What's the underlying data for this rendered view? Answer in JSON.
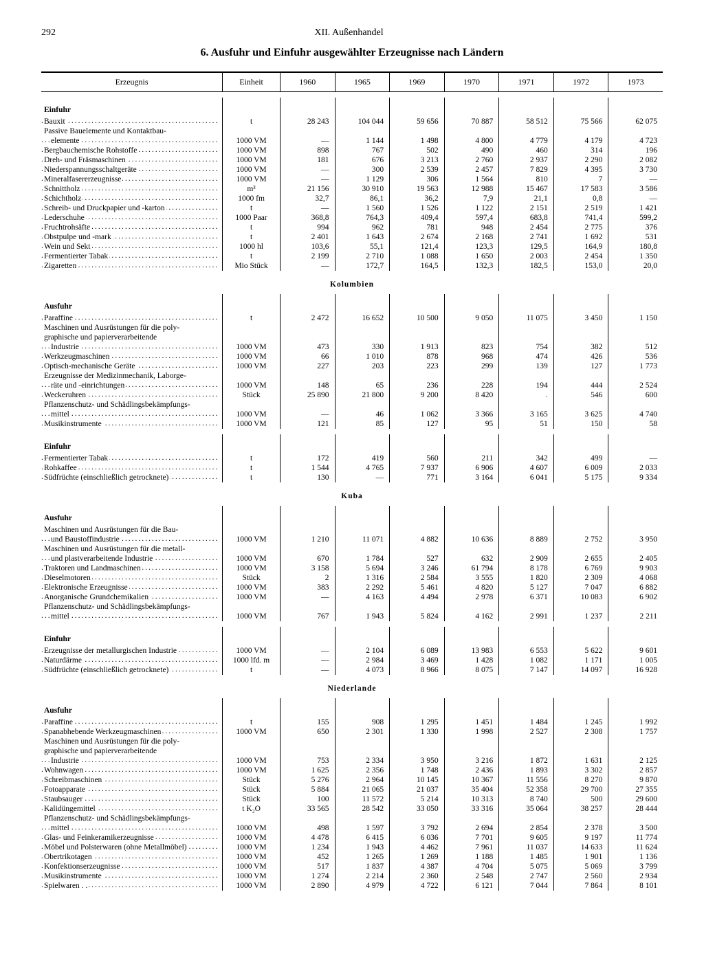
{
  "page_number": "292",
  "chapter": "XII. Außenhandel",
  "title": "6. Ausfuhr und Einfuhr ausgewählter Erzeugnisse nach Ländern",
  "columns": {
    "product": "Erzeugnis",
    "unit": "Einheit",
    "years": [
      "1960",
      "1965",
      "1969",
      "1970",
      "1971",
      "1972",
      "1973"
    ]
  },
  "colors": {
    "text": "#000000",
    "bg": "#ffffff",
    "rule": "#000000"
  },
  "fontsize": {
    "body": 11.5,
    "header": 14,
    "title": 16
  },
  "sections": [
    {
      "type": "section",
      "label": "Einfuhr"
    },
    {
      "type": "row",
      "label": "Bauxit",
      "unit": "t",
      "v": [
        "28 243",
        "104 044",
        "59 656",
        "70 887",
        "58 512",
        "75 566",
        "62 075"
      ]
    },
    {
      "type": "row",
      "label": "Passive Bauelemente und Kontaktbau-",
      "nodots": true,
      "unit": "",
      "v": [
        "",
        "",
        "",
        "",
        "",
        "",
        ""
      ]
    },
    {
      "type": "cont",
      "label": "elemente",
      "unit": "1000 VM",
      "v": [
        "—",
        "1 144",
        "1 498",
        "4 800",
        "4 779",
        "4 179",
        "4 723"
      ]
    },
    {
      "type": "row",
      "label": "Bergbauchemische Rohstoffe",
      "unit": "1000 VM",
      "v": [
        "898",
        "767",
        "502",
        "490",
        "460",
        "314",
        "196"
      ]
    },
    {
      "type": "row",
      "label": "Dreh- und Fräsmaschinen",
      "unit": "1000 VM",
      "v": [
        "181",
        "676",
        "3 213",
        "2 760",
        "2 937",
        "2 290",
        "2 082"
      ]
    },
    {
      "type": "row",
      "label": "Niederspannungsschaltgeräte",
      "unit": "1000 VM",
      "v": [
        "—",
        "300",
        "2 539",
        "2 457",
        "7 829",
        "4 395",
        "3 730"
      ]
    },
    {
      "type": "row",
      "label": "Mineralfasererzeugnisse",
      "unit": "1000 VM",
      "v": [
        "—",
        "1 129",
        "306",
        "1 564",
        "810",
        "7",
        "—"
      ]
    },
    {
      "type": "row",
      "label": "Schnittholz",
      "unit": "m³",
      "v": [
        "21 156",
        "30 910",
        "19 563",
        "12 988",
        "15 467",
        "17 583",
        "3 586"
      ]
    },
    {
      "type": "row",
      "label": "Schichtholz",
      "unit": "1000 fm",
      "v": [
        "32,7",
        "86,1",
        "36,2",
        "7,9",
        "21,1",
        "0,8",
        "—"
      ]
    },
    {
      "type": "row",
      "label": "Schreib- und Druckpapier und -karton",
      "unit": "t",
      "v": [
        "—",
        "1 560",
        "1 526",
        "1 122",
        "2 151",
        "2 519",
        "1 421"
      ]
    },
    {
      "type": "row",
      "label": "Lederschuhe",
      "unit": "1000 Paar",
      "v": [
        "368,8",
        "764,3",
        "409,4",
        "597,4",
        "683,8",
        "741,4",
        "599,2"
      ]
    },
    {
      "type": "row",
      "label": "Fruchtrohsäfte",
      "unit": "t",
      "v": [
        "994",
        "962",
        "781",
        "948",
        "2 454",
        "2 775",
        "376"
      ]
    },
    {
      "type": "row",
      "label": "Obstpulpe und -mark",
      "unit": "t",
      "v": [
        "2 401",
        "1 643",
        "2 674",
        "2 168",
        "2 741",
        "1 692",
        "531"
      ]
    },
    {
      "type": "row",
      "label": "Wein und Sekt",
      "unit": "1000 hl",
      "v": [
        "103,6",
        "55,1",
        "121,4",
        "123,3",
        "129,5",
        "164,9",
        "180,8"
      ]
    },
    {
      "type": "row",
      "label": "Fermentierter Tabak",
      "unit": "t",
      "v": [
        "2 199",
        "2 710",
        "1 088",
        "1 650",
        "2 003",
        "2 454",
        "1 350"
      ]
    },
    {
      "type": "row",
      "label": "Zigaretten",
      "unit": "Mio Stück",
      "v": [
        "—",
        "172,7",
        "164,5",
        "132,3",
        "182,5",
        "153,0",
        "20,0"
      ]
    },
    {
      "type": "country",
      "label": "Kolumbien"
    },
    {
      "type": "section",
      "label": "Ausfuhr"
    },
    {
      "type": "row",
      "label": "Paraffine",
      "unit": "t",
      "v": [
        "2 472",
        "16 652",
        "10 500",
        "9 050",
        "11 075",
        "3 450",
        "1 150"
      ]
    },
    {
      "type": "row",
      "label": "Maschinen und Ausrüstungen für die poly-",
      "nodots": true,
      "unit": "",
      "v": [
        "",
        "",
        "",
        "",
        "",
        "",
        ""
      ]
    },
    {
      "type": "row",
      "label": "  graphische und papierverarbeitende",
      "nodots": true,
      "unit": "",
      "v": [
        "",
        "",
        "",
        "",
        "",
        "",
        ""
      ]
    },
    {
      "type": "cont",
      "label": "Industrie",
      "unit": "1000 VM",
      "v": [
        "473",
        "330",
        "1 913",
        "823",
        "754",
        "382",
        "512"
      ]
    },
    {
      "type": "row",
      "label": "Werkzeugmaschinen",
      "unit": "1000 VM",
      "v": [
        "66",
        "1 010",
        "878",
        "968",
        "474",
        "426",
        "536"
      ]
    },
    {
      "type": "row",
      "label": "Optisch-mechanische Geräte",
      "unit": "1000 VM",
      "v": [
        "227",
        "203",
        "223",
        "299",
        "139",
        "127",
        "1 773"
      ]
    },
    {
      "type": "row",
      "label": "Erzeugnisse der Medizinmechanik, Laborge-",
      "nodots": true,
      "unit": "",
      "v": [
        "",
        "",
        "",
        "",
        "",
        "",
        ""
      ]
    },
    {
      "type": "cont",
      "label": "räte und -einrichtungen",
      "unit": "1000 VM",
      "v": [
        "148",
        "65",
        "236",
        "228",
        "194",
        "444",
        "2 524"
      ]
    },
    {
      "type": "row",
      "label": "Weckeruhren",
      "unit": "Stück",
      "v": [
        "25 890",
        "21 800",
        "9 200",
        "8 420",
        ".",
        "546",
        "600"
      ]
    },
    {
      "type": "row",
      "label": "Pflanzenschutz- und Schädlingsbekämpfungs-",
      "nodots": true,
      "unit": "",
      "v": [
        "",
        "",
        "",
        "",
        "",
        "",
        ""
      ]
    },
    {
      "type": "cont",
      "label": "mittel",
      "unit": "1000 VM",
      "v": [
        "—",
        "46",
        "1 062",
        "3 366",
        "3 165",
        "3 625",
        "4 740"
      ]
    },
    {
      "type": "row",
      "label": "Musikinstrumente",
      "unit": "1000 VM",
      "v": [
        "121",
        "85",
        "127",
        "95",
        "51",
        "150",
        "58"
      ]
    },
    {
      "type": "spacer"
    },
    {
      "type": "section",
      "label": "Einfuhr"
    },
    {
      "type": "row",
      "label": "Fermentierter Tabak",
      "unit": "t",
      "v": [
        "172",
        "419",
        "560",
        "211",
        "342",
        "499",
        "—"
      ]
    },
    {
      "type": "row",
      "label": "Rohkaffee",
      "unit": "t",
      "v": [
        "1 544",
        "4 765",
        "7 937",
        "6 906",
        "4 607",
        "6 009",
        "2 033"
      ]
    },
    {
      "type": "row",
      "label": "Südfrüchte (einschließlich getrocknete)",
      "unit": "t",
      "v": [
        "130",
        "—",
        "771",
        "3 164",
        "6 041",
        "5 175",
        "9 334"
      ]
    },
    {
      "type": "country",
      "label": "Kuba"
    },
    {
      "type": "section",
      "label": "Ausfuhr"
    },
    {
      "type": "row",
      "label": "Maschinen und Ausrüstungen für die Bau-",
      "nodots": true,
      "unit": "",
      "v": [
        "",
        "",
        "",
        "",
        "",
        "",
        ""
      ]
    },
    {
      "type": "cont",
      "label": "und Baustoffindustrie",
      "unit": "1000 VM",
      "v": [
        "1 210",
        "11 071",
        "4 882",
        "10 636",
        "8 889",
        "2 752",
        "3 950"
      ]
    },
    {
      "type": "row",
      "label": "Maschinen und Ausrüstungen für die metall-",
      "nodots": true,
      "unit": "",
      "v": [
        "",
        "",
        "",
        "",
        "",
        "",
        ""
      ]
    },
    {
      "type": "cont",
      "label": "und plastverarbeitende Industrie",
      "unit": "1000 VM",
      "v": [
        "670",
        "1 784",
        "527",
        "632",
        "2 909",
        "2 655",
        "2 405"
      ]
    },
    {
      "type": "row",
      "label": "Traktoren und Landmaschinen",
      "unit": "1000 VM",
      "v": [
        "3 158",
        "5 694",
        "3 246",
        "61 794",
        "8 178",
        "6 769",
        "9 903"
      ]
    },
    {
      "type": "row",
      "label": "Dieselmotoren",
      "unit": "Stück",
      "v": [
        "2",
        "1 316",
        "2 584",
        "3 555",
        "1 820",
        "2 309",
        "4 068"
      ]
    },
    {
      "type": "row",
      "label": "Elektronische Erzeugnisse",
      "unit": "1000 VM",
      "v": [
        "383",
        "2 292",
        "5 461",
        "4 820",
        "5 127",
        "7 047",
        "6 882"
      ]
    },
    {
      "type": "row",
      "label": "Anorganische Grundchemikalien",
      "unit": "1000 VM",
      "v": [
        "—",
        "4 163",
        "4 494",
        "2 978",
        "6 371",
        "10 083",
        "6 902"
      ]
    },
    {
      "type": "row",
      "label": "Pflanzenschutz- und Schädlingsbekämpfungs-",
      "nodots": true,
      "unit": "",
      "v": [
        "",
        "",
        "",
        "",
        "",
        "",
        ""
      ]
    },
    {
      "type": "cont",
      "label": "mittel",
      "unit": "1000 VM",
      "v": [
        "767",
        "1 943",
        "5 824",
        "4 162",
        "2 991",
        "1 237",
        "2 211"
      ]
    },
    {
      "type": "spacer"
    },
    {
      "type": "section",
      "label": "Einfuhr"
    },
    {
      "type": "row",
      "label": "Erzeugnisse der metallurgischen Industrie",
      "unit": "1000 VM",
      "v": [
        "—",
        "2 104",
        "6 089",
        "13 983",
        "6 553",
        "5 622",
        "9 601"
      ]
    },
    {
      "type": "row",
      "label": "Naturdärme",
      "unit": "1000 lfd. m",
      "v": [
        "—",
        "2 984",
        "3 469",
        "1 428",
        "1 082",
        "1 171",
        "1 005"
      ]
    },
    {
      "type": "row",
      "label": "Südfrüchte (einschließlich getrocknete)",
      "unit": "t",
      "v": [
        "—",
        "4 073",
        "8 966",
        "8 075",
        "7 147",
        "14 097",
        "16 928"
      ]
    },
    {
      "type": "country",
      "label": "Niederlande"
    },
    {
      "type": "section",
      "label": "Ausfuhr"
    },
    {
      "type": "row",
      "label": "Paraffine",
      "unit": "t",
      "v": [
        "155",
        "908",
        "1 295",
        "1 451",
        "1 484",
        "1 245",
        "1 992"
      ]
    },
    {
      "type": "row",
      "label": "Spanabhebende Werkzeugmaschinen",
      "unit": "1000 VM",
      "v": [
        "650",
        "2 301",
        "1 330",
        "1 998",
        "2 527",
        "2 308",
        "1 757"
      ]
    },
    {
      "type": "row",
      "label": "Maschinen und Ausrüstungen für die poly-",
      "nodots": true,
      "unit": "",
      "v": [
        "",
        "",
        "",
        "",
        "",
        "",
        ""
      ]
    },
    {
      "type": "row",
      "label": "  graphische und papierverarbeitende",
      "nodots": true,
      "unit": "",
      "v": [
        "",
        "",
        "",
        "",
        "",
        "",
        ""
      ]
    },
    {
      "type": "cont",
      "label": "Industrie",
      "unit": "1000 VM",
      "v": [
        "753",
        "2 334",
        "3 950",
        "3 216",
        "1 872",
        "1 631",
        "2 125"
      ]
    },
    {
      "type": "row",
      "label": "Wohnwagen",
      "unit": "1000 VM",
      "v": [
        "1 625",
        "2 356",
        "1 748",
        "2 436",
        "1 893",
        "3 302",
        "2 857"
      ]
    },
    {
      "type": "row",
      "label": "Schreibmaschinen",
      "unit": "Stück",
      "v": [
        "5 276",
        "2 964",
        "10 145",
        "10 367",
        "11 556",
        "8 270",
        "9 870"
      ]
    },
    {
      "type": "row",
      "label": "Fotoapparate",
      "unit": "Stück",
      "v": [
        "5 884",
        "21 065",
        "21 037",
        "35 404",
        "52 358",
        "29 700",
        "27 355"
      ]
    },
    {
      "type": "row",
      "label": "Staubsauger",
      "unit": "Stück",
      "v": [
        "100",
        "11 572",
        "5 214",
        "10 313",
        "8 740",
        "500",
        "29 600"
      ]
    },
    {
      "type": "row",
      "label": "Kalidüngemittel",
      "unit": "t K₂O",
      "v": [
        "33 565",
        "28 542",
        "33 050",
        "33 316",
        "35 064",
        "38 257",
        "28 444"
      ]
    },
    {
      "type": "row",
      "label": "Pflanzenschutz- und Schädlingsbekämpfungs-",
      "nodots": true,
      "unit": "",
      "v": [
        "",
        "",
        "",
        "",
        "",
        "",
        ""
      ]
    },
    {
      "type": "cont",
      "label": "mittel",
      "unit": "1000 VM",
      "v": [
        "498",
        "1 597",
        "3 792",
        "2 694",
        "2 854",
        "2 378",
        "3 500"
      ]
    },
    {
      "type": "row",
      "label": "Glas- und Feinkeramikerzeugnisse",
      "unit": "1000 VM",
      "v": [
        "4 478",
        "6 415",
        "6 036",
        "7 701",
        "9 605",
        "9 197",
        "11 774"
      ]
    },
    {
      "type": "row",
      "label": "Möbel und Polsterwaren (ohne Metallmöbel)",
      "unit": "1000 VM",
      "v": [
        "1 234",
        "1 943",
        "4 462",
        "7 961",
        "11 037",
        "14 633",
        "11 624"
      ]
    },
    {
      "type": "row",
      "label": "Obertrikotagen",
      "unit": "1000 VM",
      "v": [
        "452",
        "1 265",
        "1 269",
        "1 188",
        "1 485",
        "1 901",
        "1 136"
      ]
    },
    {
      "type": "row",
      "label": "Konfektionserzeugnisse",
      "unit": "1000 VM",
      "v": [
        "517",
        "1 837",
        "4 387",
        "4 704",
        "5 075",
        "5 069",
        "3 799"
      ]
    },
    {
      "type": "row",
      "label": "Musikinstrumente",
      "unit": "1000 VM",
      "v": [
        "1 274",
        "2 214",
        "2 360",
        "2 548",
        "2 747",
        "2 560",
        "2 934"
      ]
    },
    {
      "type": "row",
      "label": "Spielwaren . .",
      "unit": "1000 VM",
      "v": [
        "2 890",
        "4 979",
        "4 722",
        "6 121",
        "7 044",
        "7 864",
        "8 101"
      ]
    }
  ]
}
